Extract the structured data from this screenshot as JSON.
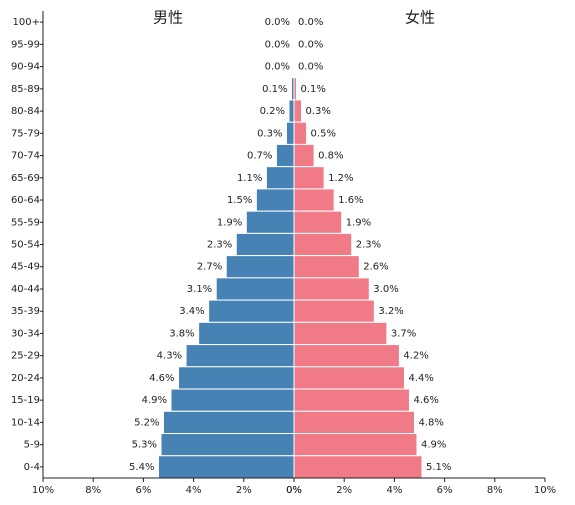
{
  "chart_data": {
    "type": "pyramid",
    "categories": [
      "100+",
      "95-99",
      "90-94",
      "85-89",
      "80-84",
      "75-79",
      "70-74",
      "65-69",
      "60-64",
      "55-59",
      "50-54",
      "45-49",
      "40-44",
      "35-39",
      "30-34",
      "25-29",
      "20-24",
      "15-19",
      "10-14",
      "5-9",
      "0-4"
    ],
    "series": [
      {
        "name": "男性",
        "color": "#4682b4",
        "values": [
          0.0,
          0.0,
          0.0,
          0.1,
          0.2,
          0.3,
          0.7,
          1.1,
          1.5,
          1.9,
          2.3,
          2.7,
          3.1,
          3.4,
          3.8,
          4.3,
          4.6,
          4.9,
          5.2,
          5.3,
          5.4
        ],
        "value_labels": [
          "0.0%",
          "0.0%",
          "0.0%",
          "0.1%",
          "0.2%",
          "0.3%",
          "0.7%",
          "1.1%",
          "1.5%",
          "1.9%",
          "2.3%",
          "2.7%",
          "3.1%",
          "3.4%",
          "3.8%",
          "4.3%",
          "4.6%",
          "4.9%",
          "5.2%",
          "5.3%",
          "5.4%"
        ]
      },
      {
        "name": "女性",
        "color": "#f07b87",
        "values": [
          0.0,
          0.0,
          0.0,
          0.1,
          0.3,
          0.5,
          0.8,
          1.2,
          1.6,
          1.9,
          2.3,
          2.6,
          3.0,
          3.2,
          3.7,
          4.2,
          4.4,
          4.6,
          4.8,
          4.9,
          5.1
        ],
        "value_labels": [
          "0.0%",
          "0.0%",
          "0.0%",
          "0.1%",
          "0.3%",
          "0.5%",
          "0.8%",
          "1.2%",
          "1.6%",
          "1.9%",
          "2.3%",
          "2.6%",
          "3.0%",
          "3.2%",
          "3.7%",
          "4.2%",
          "4.4%",
          "4.6%",
          "4.8%",
          "4.9%",
          "5.1%"
        ]
      }
    ],
    "xlim": [
      0,
      10
    ],
    "xticks": [
      {
        "value": 0,
        "label": "0%"
      },
      {
        "value": 2,
        "label": "2%"
      },
      {
        "value": 4,
        "label": "4%"
      },
      {
        "value": 6,
        "label": "6%"
      },
      {
        "value": 8,
        "label": "8%"
      },
      {
        "value": 10,
        "label": "10%"
      }
    ]
  }
}
